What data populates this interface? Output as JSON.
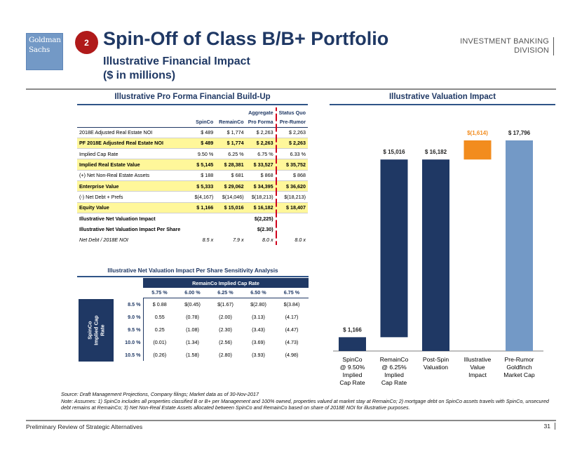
{
  "header": {
    "logo_line1": "Goldman",
    "logo_line2": "Sachs",
    "section_number": "2",
    "title": "Spin-Off of Class B/B+ Portfolio",
    "subtitle_line1": "Illustrative Financial Impact",
    "subtitle_line2": "($ in millions)",
    "division_line1": "INVESTMENT BANKING",
    "division_line2": "DIVISION"
  },
  "proforma": {
    "title": "Illustrative Pro Forma Financial Build-Up",
    "columns": [
      {
        "top": "",
        "bottom": "SpinCo"
      },
      {
        "top": "",
        "bottom": "RemainCo"
      },
      {
        "top": "Aggregate",
        "bottom": "Pro Forma"
      },
      {
        "top": "Status Quo",
        "bottom": "Pre-Rumor"
      }
    ],
    "rows": [
      {
        "label": "2018E Adjusted Real Estate NOI",
        "values": [
          "$ 489",
          "$ 1,774",
          "$ 2,263",
          "$ 2,263"
        ],
        "style": "normal"
      },
      {
        "label": "PF 2018E Adjusted Real Estate NOI",
        "values": [
          "$ 489",
          "$ 1,774",
          "$ 2,263",
          "$ 2,263"
        ],
        "style": "highlight"
      },
      {
        "label": "Implied Cap Rate",
        "values": [
          "9.50 %",
          "6.25 %",
          "6.75 %",
          "6.33 %"
        ],
        "style": "normal"
      },
      {
        "label": "Implied Real Estate Value",
        "values": [
          "$ 5,145",
          "$ 28,381",
          "$ 33,527",
          "$ 35,752"
        ],
        "style": "highlight"
      },
      {
        "label": "(+) Net Non-Real Estate Assets",
        "values": [
          "$ 188",
          "$ 681",
          "$ 868",
          "$ 868"
        ],
        "style": "normal"
      },
      {
        "label": "Enterprise Value",
        "values": [
          "$ 5,333",
          "$ 29,062",
          "$ 34,395",
          "$ 36,620"
        ],
        "style": "highlight"
      },
      {
        "label": "(-) Net Debt + Prefs",
        "values": [
          "$(4,167)",
          "$(14,046)",
          "$(18,213)",
          "$(18,213)"
        ],
        "style": "normal"
      },
      {
        "label": "Equity Value",
        "values": [
          "$ 1,166",
          "$ 15,016",
          "$ 16,182",
          "$ 18,407"
        ],
        "style": "highlight"
      },
      {
        "label": "Illustrative Net Valuation Impact",
        "values": [
          "",
          "",
          "$(2,225)",
          ""
        ],
        "style": "bold"
      },
      {
        "label": "Illustrative Net Valuation Impact Per Share",
        "values": [
          "",
          "",
          "$(2.30)",
          ""
        ],
        "style": "bold"
      },
      {
        "label": "Net Debt / 2018E NOI",
        "values": [
          "8.5 x",
          "7.9 x",
          "8.0 x",
          "8.0 x"
        ],
        "style": "italic"
      }
    ]
  },
  "sensitivity": {
    "title": "Illustrative Net Valuation Impact Per Share Sensitivity Analysis",
    "col_header": "RemainCo Implied Cap Rate",
    "row_header": "SpinCo Implied Cap Rate",
    "columns": [
      "5.75 %",
      "6.00 %",
      "6.25 %",
      "6.50 %",
      "6.75 %"
    ],
    "rows": [
      {
        "label": "8.5 %",
        "values": [
          "$ 0.88",
          "$(0.45)",
          "$(1.67)",
          "$(2.80)",
          "$(3.84)"
        ]
      },
      {
        "label": "9.0 %",
        "values": [
          "0.55",
          "(0.78)",
          "(2.00)",
          "(3.13)",
          "(4.17)"
        ]
      },
      {
        "label": "9.5 %",
        "values": [
          "0.25",
          "(1.08)",
          "(2.30)",
          "(3.43)",
          "(4.47)"
        ]
      },
      {
        "label": "10.0 %",
        "values": [
          "(0.01)",
          "(1.34)",
          "(2.56)",
          "(3.69)",
          "(4.73)"
        ]
      },
      {
        "label": "10.5 %",
        "values": [
          "(0.26)",
          "(1.58)",
          "(2.80)",
          "(3.93)",
          "(4.98)"
        ]
      }
    ]
  },
  "chart_data": {
    "type": "bar",
    "subtype": "waterfall",
    "title": "Illustrative Valuation Impact",
    "categories": [
      [
        "SpinCo",
        "@ 9.50%",
        "Implied",
        "Cap Rate"
      ],
      [
        "RemainCo",
        "@ 6.25%",
        "Implied",
        "Cap Rate"
      ],
      [
        "Post-Spin",
        "Valuation"
      ],
      [
        "Illustrative",
        "Value",
        "Impact"
      ],
      [
        "Pre-Rumor",
        "Goldfinch",
        "Market Cap"
      ]
    ],
    "bars": [
      {
        "base": 0,
        "value": 1166,
        "label": "$ 1,166",
        "color": "#1f3864"
      },
      {
        "base": 1166,
        "value": 15016,
        "label": "$ 15,016",
        "color": "#1f3864"
      },
      {
        "base": 0,
        "value": 16182,
        "label": "$ 16,182",
        "color": "#1f3864"
      },
      {
        "base": 16182,
        "value": 1614,
        "label": "$(1,614)",
        "color": "#f28c1e",
        "label_color": "#f28c1e"
      },
      {
        "base": 0,
        "value": 17796,
        "label": "$ 17,796",
        "color": "#7399c6"
      }
    ],
    "ylim": [
      0,
      17796
    ],
    "xlabel": "",
    "ylabel": ""
  },
  "notes": {
    "source": "Source: Draft Management Projections, Company filings; Market data as of 30-Nov-2017",
    "note": "Note: Assumes: 1) SpinCo includes all properties classified B or B+ per Management and 100% owned, properties valued at market stay at RemainCo; 2) mortgage debt on SpinCo assets travels with SpinCo, unsecured debt remains at RemainCo; 3) Net Non-Real Estate Assets allocated between SpinCo and RemainCo based on share of 2018E NOI for illustrative purposes."
  },
  "footer": {
    "text": "Preliminary Review of Strategic Alternatives",
    "page": "31"
  }
}
